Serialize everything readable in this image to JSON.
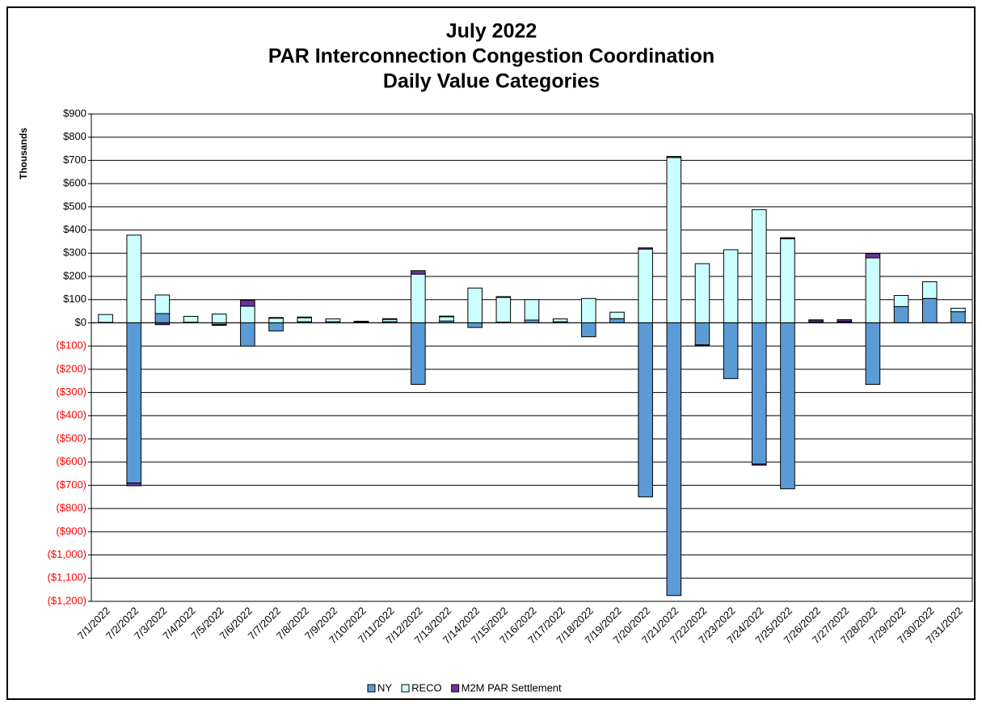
{
  "chart_data": {
    "type": "bar",
    "stacked": true,
    "title": [
      "July 2022",
      "PAR Interconnection Congestion Coordination",
      "Daily Value Categories"
    ],
    "y_axis_label": "Thousands",
    "categories": [
      "7/1/2022",
      "7/2/2022",
      "7/3/2022",
      "7/4/2022",
      "7/5/2022",
      "7/6/2022",
      "7/7/2022",
      "7/8/2022",
      "7/9/2022",
      "7/10/2022",
      "7/11/2022",
      "7/12/2022",
      "7/13/2022",
      "7/14/2022",
      "7/15/2022",
      "7/16/2022",
      "7/17/2022",
      "7/18/2022",
      "7/19/2022",
      "7/20/2022",
      "7/21/2022",
      "7/22/2022",
      "7/23/2022",
      "7/24/2022",
      "7/25/2022",
      "7/26/2022",
      "7/27/2022",
      "7/28/2022",
      "7/29/2022",
      "7/30/2022",
      "7/31/2022"
    ],
    "series": [
      {
        "name": "NY",
        "color": "#5b9bd5",
        "values": [
          2,
          -690,
          40,
          3,
          -8,
          -100,
          -35,
          5,
          5,
          2,
          5,
          -265,
          8,
          -20,
          3,
          12,
          5,
          -60,
          18,
          -750,
          -1175,
          -95,
          -240,
          -608,
          -715,
          3,
          3,
          -265,
          70,
          105,
          48
        ]
      },
      {
        "name": "RECO",
        "color": "#ccffff",
        "values": [
          34,
          378,
          80,
          25,
          38,
          72,
          20,
          17,
          12,
          3,
          10,
          210,
          18,
          150,
          107,
          88,
          12,
          105,
          28,
          318,
          712,
          255,
          315,
          488,
          362,
          5,
          3,
          280,
          48,
          72,
          15
        ]
      },
      {
        "name": "M2M PAR Settlement",
        "color": "#7030a0",
        "values": [
          0,
          -12,
          -8,
          0,
          -3,
          25,
          3,
          3,
          0,
          2,
          3,
          15,
          3,
          0,
          3,
          0,
          0,
          0,
          0,
          5,
          5,
          -3,
          0,
          -5,
          5,
          5,
          8,
          18,
          0,
          0,
          0
        ]
      }
    ],
    "ylim": [
      -1200,
      900
    ],
    "yticks": [
      {
        "value": -1200,
        "label": "($1,200)"
      },
      {
        "value": -1100,
        "label": "($1,100)"
      },
      {
        "value": -1000,
        "label": "($1,000)"
      },
      {
        "value": -900,
        "label": "($900)"
      },
      {
        "value": -800,
        "label": "($800)"
      },
      {
        "value": -700,
        "label": "($700)"
      },
      {
        "value": -600,
        "label": "($600)"
      },
      {
        "value": -500,
        "label": "($500)"
      },
      {
        "value": -400,
        "label": "($400)"
      },
      {
        "value": -300,
        "label": "($300)"
      },
      {
        "value": -200,
        "label": "($200)"
      },
      {
        "value": -100,
        "label": "($100)"
      },
      {
        "value": 0,
        "label": "$0"
      },
      {
        "value": 100,
        "label": "$100"
      },
      {
        "value": 200,
        "label": "$200"
      },
      {
        "value": 300,
        "label": "$300"
      },
      {
        "value": 400,
        "label": "$400"
      },
      {
        "value": 500,
        "label": "$500"
      },
      {
        "value": 600,
        "label": "$600"
      },
      {
        "value": 700,
        "label": "$700"
      },
      {
        "value": 800,
        "label": "$800"
      },
      {
        "value": 900,
        "label": "$900"
      }
    ],
    "negative_label_color": "#ff0000",
    "grid": true,
    "legend": "bottom"
  }
}
